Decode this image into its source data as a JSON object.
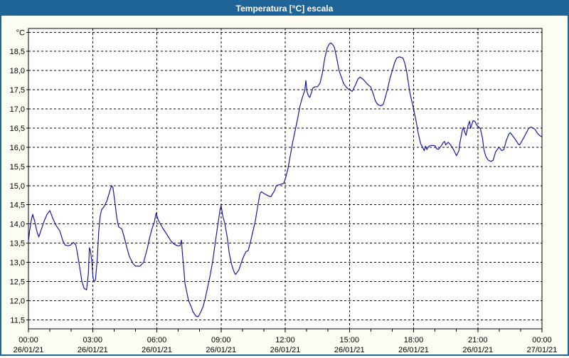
{
  "window": {
    "title": "Temperatura [°C] escala"
  },
  "colors": {
    "frame_and_titlebar": "#1F6496",
    "outer_background": "#FCFCF2",
    "plot_background": "#FFFFFF",
    "gridline": "#000000",
    "series_line": "#1818A8",
    "text": "#000000",
    "title_text": "#FFFFFF"
  },
  "chart_data": {
    "type": "line",
    "title": "Temperatura [°C] escala",
    "xlabel": "",
    "ylabel": "°C",
    "grid": "dashed black, horizontal every 0.5 °C, vertical every 3 h",
    "legend": "none",
    "y_axis": {
      "unit_label": "°C",
      "axis_min": 11.25,
      "grid_min": 11.5,
      "grid_max": 19.0,
      "step": 0.5,
      "decimal_separator": ",",
      "tick_labels": [
        "18,5",
        "18,0",
        "17,5",
        "17,0",
        "16,5",
        "16,0",
        "15,5",
        "15,0",
        "14,5",
        "14,0",
        "13,5",
        "13,0",
        "12,5",
        "12,0",
        "11,5"
      ],
      "tick_values": [
        18.5,
        18.0,
        17.5,
        17.0,
        16.5,
        16.0,
        15.5,
        15.0,
        14.5,
        14.0,
        13.5,
        13.0,
        12.5,
        12.0,
        11.5
      ]
    },
    "x_axis": {
      "span_hours": 24,
      "major_tick_hours": 3,
      "minor_tick_hours": 1,
      "ticks": [
        {
          "time": "00:00",
          "date": "26/01/21"
        },
        {
          "time": "03:00",
          "date": "26/01/21"
        },
        {
          "time": "06:00",
          "date": "26/01/21"
        },
        {
          "time": "09:00",
          "date": "26/01/21"
        },
        {
          "time": "12:00",
          "date": "26/01/21"
        },
        {
          "time": "15:00",
          "date": "26/01/21"
        },
        {
          "time": "18:00",
          "date": "26/01/21"
        },
        {
          "time": "21:00",
          "date": "26/01/21"
        },
        {
          "time": "00:00",
          "date": "27/01/21"
        }
      ]
    },
    "series": [
      {
        "name": "Temperatura",
        "color": "#1818A8",
        "points_minutes_celsius": [
          [
            0,
            13.55
          ],
          [
            3,
            13.8
          ],
          [
            8,
            14.1
          ],
          [
            12,
            14.25
          ],
          [
            18,
            14.05
          ],
          [
            24,
            13.8
          ],
          [
            29,
            13.66
          ],
          [
            36,
            13.85
          ],
          [
            45,
            14.1
          ],
          [
            52,
            14.25
          ],
          [
            60,
            14.35
          ],
          [
            68,
            14.15
          ],
          [
            78,
            13.95
          ],
          [
            88,
            13.82
          ],
          [
            97,
            13.55
          ],
          [
            103,
            13.45
          ],
          [
            110,
            13.43
          ],
          [
            118,
            13.45
          ],
          [
            126,
            13.52
          ],
          [
            133,
            13.45
          ],
          [
            138,
            13.2
          ],
          [
            144,
            12.85
          ],
          [
            150,
            12.5
          ],
          [
            156,
            12.32
          ],
          [
            163,
            12.28
          ],
          [
            168,
            12.7
          ],
          [
            171,
            13.38
          ],
          [
            174,
            13.3
          ],
          [
            178,
            13.0
          ],
          [
            181,
            12.6
          ],
          [
            184,
            12.49
          ],
          [
            188,
            12.55
          ],
          [
            193,
            13.1
          ],
          [
            197,
            13.8
          ],
          [
            201,
            14.2
          ],
          [
            205,
            14.37
          ],
          [
            212,
            14.45
          ],
          [
            220,
            14.6
          ],
          [
            228,
            14.85
          ],
          [
            233,
            15.0
          ],
          [
            237,
            14.95
          ],
          [
            242,
            14.6
          ],
          [
            248,
            14.15
          ],
          [
            253,
            13.92
          ],
          [
            262,
            13.87
          ],
          [
            270,
            13.6
          ],
          [
            276,
            13.38
          ],
          [
            283,
            13.15
          ],
          [
            293,
            12.97
          ],
          [
            300,
            12.9
          ],
          [
            313,
            12.9
          ],
          [
            323,
            13.0
          ],
          [
            333,
            13.35
          ],
          [
            340,
            13.65
          ],
          [
            346,
            13.86
          ],
          [
            353,
            14.05
          ],
          [
            358,
            14.28
          ],
          [
            364,
            14.1
          ],
          [
            376,
            13.9
          ],
          [
            390,
            13.7
          ],
          [
            400,
            13.55
          ],
          [
            409,
            13.47
          ],
          [
            418,
            13.43
          ],
          [
            425,
            13.43
          ],
          [
            429,
            13.58
          ],
          [
            432,
            13.2
          ],
          [
            436,
            12.8
          ],
          [
            439,
            12.44
          ],
          [
            442,
            12.31
          ],
          [
            449,
            12.0
          ],
          [
            456,
            11.85
          ],
          [
            462,
            11.7
          ],
          [
            469,
            11.6
          ],
          [
            476,
            11.58
          ],
          [
            483,
            11.7
          ],
          [
            490,
            11.85
          ],
          [
            496,
            12.07
          ],
          [
            503,
            12.37
          ],
          [
            510,
            12.68
          ],
          [
            517,
            13.05
          ],
          [
            523,
            13.45
          ],
          [
            530,
            13.91
          ],
          [
            537,
            14.35
          ],
          [
            540,
            14.48
          ],
          [
            545,
            14.2
          ],
          [
            550,
            14.04
          ],
          [
            557,
            13.67
          ],
          [
            563,
            13.24
          ],
          [
            570,
            12.93
          ],
          [
            577,
            12.74
          ],
          [
            581,
            12.68
          ],
          [
            590,
            12.8
          ],
          [
            597,
            12.99
          ],
          [
            603,
            13.14
          ],
          [
            610,
            13.28
          ],
          [
            616,
            13.3
          ],
          [
            623,
            13.55
          ],
          [
            629,
            13.79
          ],
          [
            636,
            14.07
          ],
          [
            643,
            14.47
          ],
          [
            649,
            14.78
          ],
          [
            653,
            14.84
          ],
          [
            663,
            14.78
          ],
          [
            673,
            14.73
          ],
          [
            680,
            14.71
          ],
          [
            690,
            14.87
          ],
          [
            695,
            15.0
          ],
          [
            706,
            15.03
          ],
          [
            716,
            15.06
          ],
          [
            721,
            15.2
          ],
          [
            728,
            15.45
          ],
          [
            735,
            15.82
          ],
          [
            741,
            16.13
          ],
          [
            748,
            16.44
          ],
          [
            755,
            16.75
          ],
          [
            761,
            17.06
          ],
          [
            768,
            17.3
          ],
          [
            775,
            17.49
          ],
          [
            778,
            17.74
          ],
          [
            781,
            17.46
          ],
          [
            784,
            17.36
          ],
          [
            789,
            17.3
          ],
          [
            798,
            17.55
          ],
          [
            805,
            17.58
          ],
          [
            811,
            17.58
          ],
          [
            818,
            17.68
          ],
          [
            824,
            17.92
          ],
          [
            831,
            18.33
          ],
          [
            838,
            18.6
          ],
          [
            844,
            18.7
          ],
          [
            848,
            18.72
          ],
          [
            853,
            18.68
          ],
          [
            858,
            18.6
          ],
          [
            865,
            18.3
          ],
          [
            871,
            18.0
          ],
          [
            878,
            17.82
          ],
          [
            884,
            17.66
          ],
          [
            891,
            17.57
          ],
          [
            898,
            17.51
          ],
          [
            908,
            17.46
          ],
          [
            917,
            17.63
          ],
          [
            924,
            17.78
          ],
          [
            930,
            17.83
          ],
          [
            940,
            17.76
          ],
          [
            950,
            17.65
          ],
          [
            960,
            17.57
          ],
          [
            967,
            17.39
          ],
          [
            973,
            17.2
          ],
          [
            980,
            17.11
          ],
          [
            988,
            17.08
          ],
          [
            995,
            17.12
          ],
          [
            1000,
            17.28
          ],
          [
            1007,
            17.52
          ],
          [
            1013,
            17.77
          ],
          [
            1020,
            17.99
          ],
          [
            1027,
            18.21
          ],
          [
            1033,
            18.33
          ],
          [
            1040,
            18.36
          ],
          [
            1050,
            18.33
          ],
          [
            1055,
            18.2
          ],
          [
            1060,
            18.0
          ],
          [
            1065,
            17.7
          ],
          [
            1070,
            17.4
          ],
          [
            1075,
            17.2
          ],
          [
            1080,
            17.0
          ],
          [
            1087,
            16.68
          ],
          [
            1093,
            16.37
          ],
          [
            1100,
            16.09
          ],
          [
            1107,
            15.97
          ],
          [
            1110,
            15.91
          ],
          [
            1113,
            16.03
          ],
          [
            1117,
            15.94
          ],
          [
            1123,
            16.03
          ],
          [
            1130,
            16.05
          ],
          [
            1140,
            16.04
          ],
          [
            1145,
            15.96
          ],
          [
            1150,
            15.95
          ],
          [
            1157,
            16.03
          ],
          [
            1163,
            16.12
          ],
          [
            1167,
            16.15
          ],
          [
            1170,
            16.06
          ],
          [
            1177,
            16.13
          ],
          [
            1183,
            16.07
          ],
          [
            1190,
            15.97
          ],
          [
            1197,
            15.84
          ],
          [
            1200,
            15.78
          ],
          [
            1207,
            15.91
          ],
          [
            1210,
            16.12
          ],
          [
            1217,
            16.46
          ],
          [
            1220,
            16.52
          ],
          [
            1223,
            16.4
          ],
          [
            1227,
            16.31
          ],
          [
            1233,
            16.58
          ],
          [
            1237,
            16.68
          ],
          [
            1240,
            16.49
          ],
          [
            1243,
            16.58
          ],
          [
            1247,
            16.7
          ],
          [
            1253,
            16.66
          ],
          [
            1257,
            16.58
          ],
          [
            1260,
            16.55
          ],
          [
            1267,
            16.49
          ],
          [
            1273,
            16.25
          ],
          [
            1277,
            15.94
          ],
          [
            1283,
            15.75
          ],
          [
            1290,
            15.66
          ],
          [
            1297,
            15.63
          ],
          [
            1303,
            15.66
          ],
          [
            1310,
            15.88
          ],
          [
            1317,
            15.97
          ],
          [
            1320,
            16.0
          ],
          [
            1327,
            15.91
          ],
          [
            1333,
            15.94
          ],
          [
            1340,
            16.18
          ],
          [
            1347,
            16.34
          ],
          [
            1351,
            16.38
          ],
          [
            1360,
            16.27
          ],
          [
            1367,
            16.18
          ],
          [
            1373,
            16.09
          ],
          [
            1377,
            16.06
          ],
          [
            1383,
            16.15
          ],
          [
            1390,
            16.27
          ],
          [
            1397,
            16.39
          ],
          [
            1403,
            16.5
          ],
          [
            1410,
            16.53
          ],
          [
            1420,
            16.47
          ],
          [
            1427,
            16.37
          ],
          [
            1433,
            16.31
          ],
          [
            1440,
            16.27
          ]
        ]
      }
    ]
  }
}
